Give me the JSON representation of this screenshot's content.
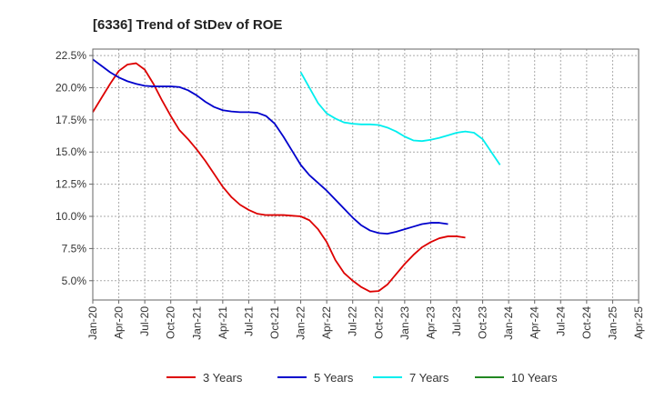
{
  "chart_data": {
    "type": "line",
    "title": "[6336]  Trend of StDev of ROE",
    "xlabel": "",
    "ylabel": "",
    "ylim": [
      3.5,
      23.0
    ],
    "y_ticks": [
      "5.0%",
      "7.5%",
      "10.0%",
      "12.5%",
      "15.0%",
      "17.5%",
      "20.0%",
      "22.5%"
    ],
    "y_tick_values": [
      5.0,
      7.5,
      10.0,
      12.5,
      15.0,
      17.5,
      20.0,
      22.5
    ],
    "x_ticks": [
      "Jan-20",
      "Apr-20",
      "Jul-20",
      "Oct-20",
      "Jan-21",
      "Apr-21",
      "Jul-21",
      "Oct-21",
      "Jan-22",
      "Apr-22",
      "Jul-22",
      "Oct-22",
      "Jan-23",
      "Apr-23",
      "Jul-23",
      "Oct-23",
      "Jan-24",
      "Apr-24",
      "Jul-24",
      "Oct-24",
      "Jan-25",
      "Apr-25"
    ],
    "grid": true,
    "legend_position": "bottom",
    "series": [
      {
        "name": "3 Years",
        "color": "#dd0000",
        "values": [
          18.1,
          19.2,
          20.3,
          21.3,
          21.8,
          21.9,
          21.4,
          20.3,
          19.0,
          17.8,
          16.7,
          16.0,
          15.2,
          14.3,
          13.3,
          12.3,
          11.5,
          10.9,
          10.5,
          10.2,
          10.1,
          10.1,
          10.1,
          10.05,
          10.0,
          9.7,
          9.0,
          8.0,
          6.6,
          5.6,
          5.0,
          4.5,
          4.15,
          4.2,
          4.7,
          5.5,
          6.3,
          7.0,
          7.6,
          8.0,
          8.3,
          8.45,
          8.45,
          8.35
        ]
      },
      {
        "name": "5 Years",
        "color": "#0000cc",
        "values": [
          22.2,
          21.7,
          21.2,
          20.8,
          20.5,
          20.3,
          20.15,
          20.1,
          20.1,
          20.1,
          20.05,
          19.8,
          19.4,
          18.9,
          18.5,
          18.25,
          18.15,
          18.1,
          18.1,
          18.05,
          17.8,
          17.2,
          16.2,
          15.1,
          14.0,
          13.2,
          12.6,
          12.0,
          11.3,
          10.6,
          9.9,
          9.3,
          8.9,
          8.7,
          8.65,
          8.8,
          9.0,
          9.2,
          9.4,
          9.5,
          9.5,
          9.4
        ]
      },
      {
        "name": "7 Years",
        "color": "#00eeee",
        "values": [
          21.2,
          20.0,
          18.8,
          18.0,
          17.6,
          17.3,
          17.2,
          17.15,
          17.15,
          17.1,
          16.9,
          16.6,
          16.2,
          15.9,
          15.85,
          15.95,
          16.1,
          16.3,
          16.5,
          16.6,
          16.5,
          16.0,
          15.0,
          14.0
        ]
      },
      {
        "name": "10 Years",
        "color": "#228822",
        "values": []
      }
    ]
  }
}
